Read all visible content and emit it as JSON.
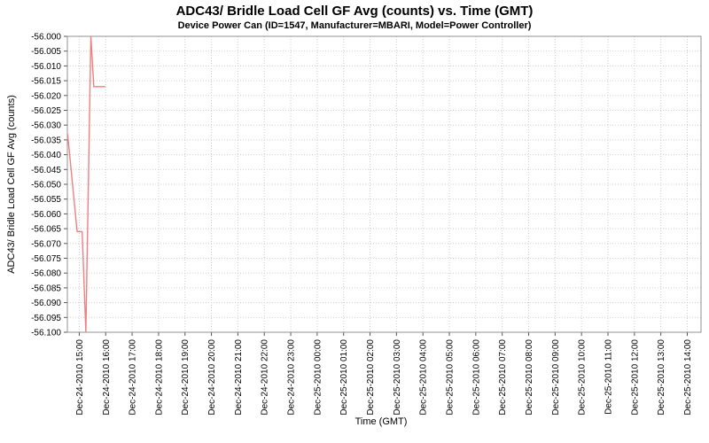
{
  "chart_data": {
    "type": "line",
    "title": "ADC43/ Bridle Load Cell GF Avg (counts) vs. Time (GMT)",
    "subtitle": "Device Power Can (ID=1547, Manufacturer=MBARI, Model=Power Controller)",
    "xlabel": "Time (GMT)",
    "ylabel": "ADC43/ Bridle Load Cell GF Avg (counts)",
    "legend": "none",
    "grid": "dotted",
    "colors": {
      "series": "#f08080",
      "grid": "#cccccc",
      "border": "#909090",
      "tick": "#555555",
      "text": "#000000",
      "background": "#ffffff"
    },
    "y_axis": {
      "min": -56.1,
      "max": -56.0,
      "tick_step": 0.005,
      "tick_labels": [
        "-56.000",
        "-56.005",
        "-56.010",
        "-56.015",
        "-56.020",
        "-56.025",
        "-56.030",
        "-56.035",
        "-56.040",
        "-56.045",
        "-56.050",
        "-56.055",
        "-56.060",
        "-56.065",
        "-56.070",
        "-56.075",
        "-56.080",
        "-56.085",
        "-56.090",
        "-56.095",
        "-56.100"
      ]
    },
    "x_axis": {
      "domain_hours": [
        14.55,
        38.52
      ],
      "ticks": [
        {
          "hour": 15,
          "label": "Dec-24-2010 15:00"
        },
        {
          "hour": 16,
          "label": "Dec-24-2010 16:00"
        },
        {
          "hour": 17,
          "label": "Dec-24-2010 17:00"
        },
        {
          "hour": 18,
          "label": "Dec-24-2010 18:00"
        },
        {
          "hour": 19,
          "label": "Dec-24-2010 19:00"
        },
        {
          "hour": 20,
          "label": "Dec-24-2010 20:00"
        },
        {
          "hour": 21,
          "label": "Dec-24-2010 21:00"
        },
        {
          "hour": 22,
          "label": "Dec-24-2010 22:00"
        },
        {
          "hour": 23,
          "label": "Dec-24-2010 23:00"
        },
        {
          "hour": 24,
          "label": "Dec-25-2010 00:00"
        },
        {
          "hour": 25,
          "label": "Dec-25-2010 01:00"
        },
        {
          "hour": 26,
          "label": "Dec-25-2010 02:00"
        },
        {
          "hour": 27,
          "label": "Dec-25-2010 03:00"
        },
        {
          "hour": 28,
          "label": "Dec-25-2010 04:00"
        },
        {
          "hour": 29,
          "label": "Dec-25-2010 05:00"
        },
        {
          "hour": 30,
          "label": "Dec-25-2010 06:00"
        },
        {
          "hour": 31,
          "label": "Dec-25-2010 07:00"
        },
        {
          "hour": 32,
          "label": "Dec-25-2010 08:00"
        },
        {
          "hour": 33,
          "label": "Dec-25-2010 09:00"
        },
        {
          "hour": 34,
          "label": "Dec-25-2010 10:00"
        },
        {
          "hour": 35,
          "label": "Dec-25-2010 11:00"
        },
        {
          "hour": 36,
          "label": "Dec-25-2010 12:00"
        },
        {
          "hour": 37,
          "label": "Dec-25-2010 13:00"
        },
        {
          "hour": 38,
          "label": "Dec-25-2010 14:00"
        }
      ]
    },
    "series": [
      {
        "name": "ADC43 Bridle Load Cell GF Avg",
        "color": "#f08080",
        "points": [
          {
            "hour": 14.56,
            "value": -56.033
          },
          {
            "hour": 14.92,
            "value": -56.066
          },
          {
            "hour": 15.11,
            "value": -56.066
          },
          {
            "hour": 15.25,
            "value": -56.1
          },
          {
            "hour": 15.44,
            "value": -56.0
          },
          {
            "hour": 15.55,
            "value": -56.017
          },
          {
            "hour": 15.99,
            "value": -56.017
          }
        ]
      }
    ]
  }
}
